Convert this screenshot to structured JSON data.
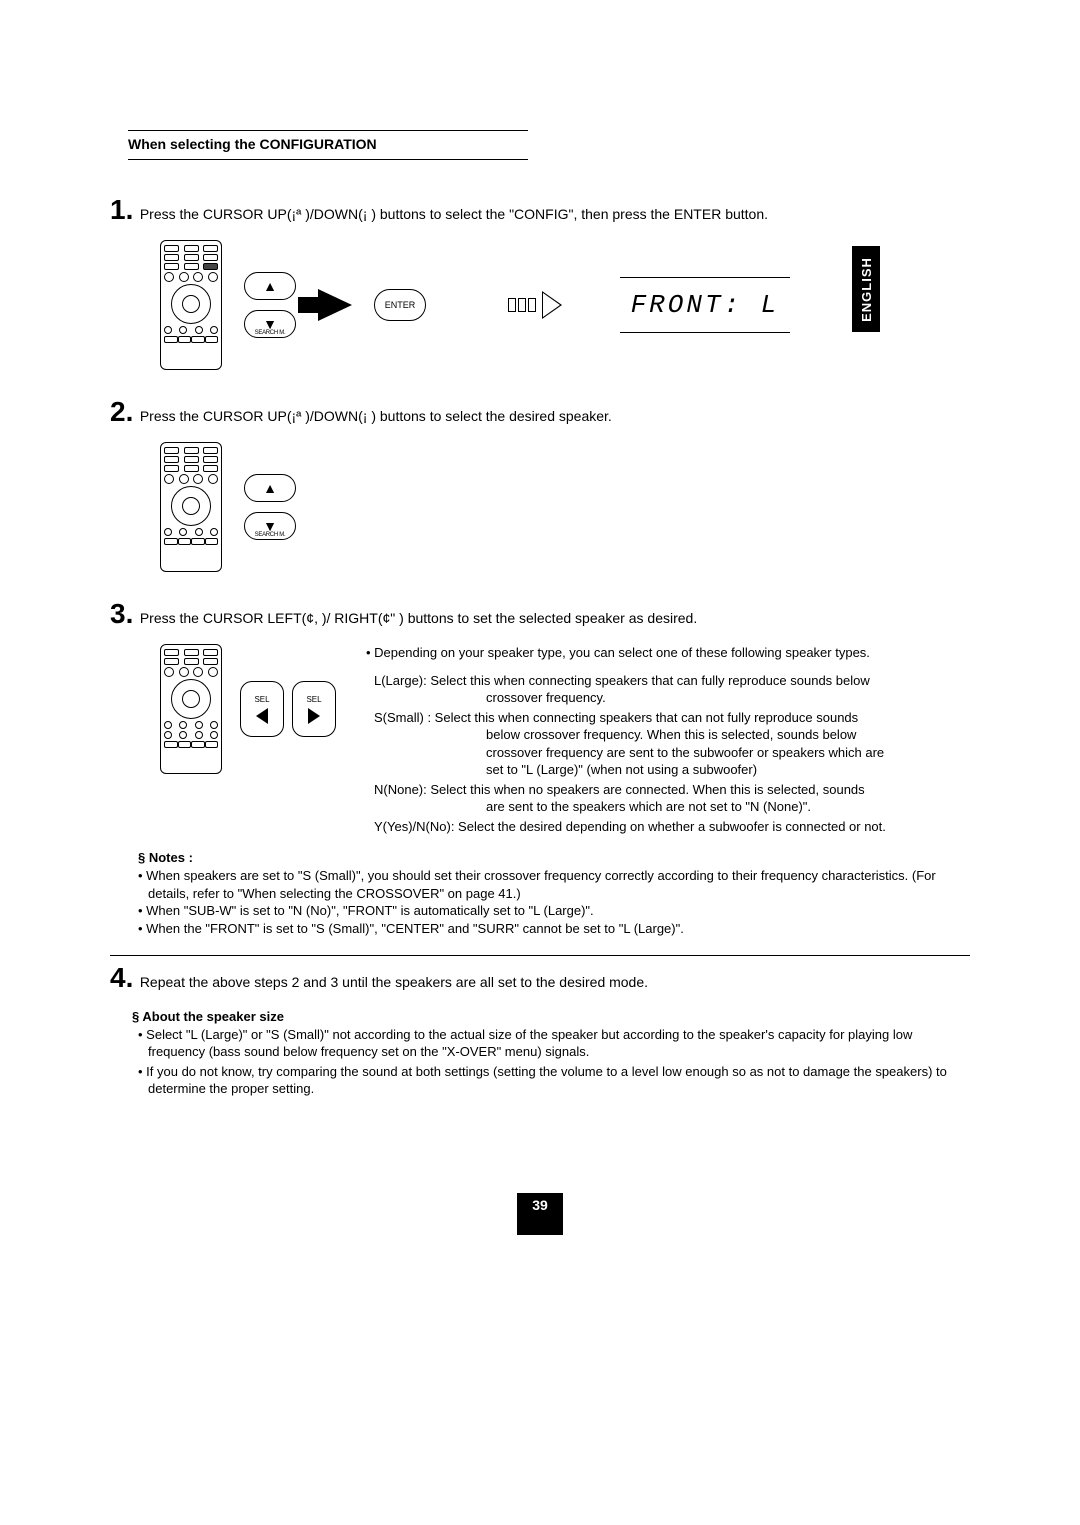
{
  "language_tab": "ENGLISH",
  "page_number": "39",
  "section_title": "When selecting the CONFIGURATION",
  "steps": {
    "s1": {
      "num": "1.",
      "text": "Press the CURSOR UP(¡ª )/DOWN(¡  ) buttons to select the \"CONFIG\", then press the ENTER button."
    },
    "s2": {
      "num": "2.",
      "text": "Press the CURSOR UP(¡ª )/DOWN(¡  ) buttons to select the desired speaker."
    },
    "s3": {
      "num": "3.",
      "text": "Press the CURSOR LEFT(¢, )/ RIGHT(¢\" ) buttons to set the selected speaker as desired."
    },
    "s4": {
      "num": "4.",
      "text": "Repeat the above steps 2 and 3 until the speakers are all set to the desired mode."
    }
  },
  "fig": {
    "enter_label": "ENTER",
    "search_label": "SEARCH M.",
    "sel_label": "SEL",
    "display_text": "FRONT:  L"
  },
  "info": {
    "top": "• Depending on your speaker type, you can select one of these following speaker types.",
    "L_label": "L(Large): ",
    "L_text": "Select this when connecting speakers that can fully reproduce sounds below crossover frequency.",
    "S_label": "S(Small) : ",
    "S_text": "Select this when connecting speakers that can not fully reproduce sounds below crossover frequency. When this is selected, sounds below crossover frequency are sent to the subwoofer or speakers which are set to \"L (Large)\" (when not using a subwoofer)",
    "N_label": "N(None): ",
    "N_text": "Select this when no speakers are connected. When this is selected, sounds are sent to the speakers which are not set to \"N (None)\".",
    "Y_label": "Y(Yes)/N(No): ",
    "Y_text": "Select the desired depending on whether a subwoofer is connected or not."
  },
  "notes": {
    "title": "§  Notes :",
    "n1": "• When speakers are set to \"S (Small)\", you should set their crossover frequency correctly according to their frequency characteristics. (For details, refer to \"When selecting the CROSSOVER\" on page 41.)",
    "n2": "• When \"SUB-W\" is set to \"N (No)\", \"FRONT\" is automatically set to \"L (Large)\".",
    "n3": "• When the \"FRONT\" is set to \"S (Small)\", \"CENTER\" and \"SURR\" cannot be set to \"L (Large)\"."
  },
  "about": {
    "title": "§  About the speaker size",
    "a1": "• Select \"L (Large)\" or \"S (Small)\" not according to the actual size of the speaker but according to the speaker's capacity for playing low frequency (bass sound below frequency set on the \"X-OVER\" menu) signals.",
    "a2": "• If you do not know, try comparing the sound at both settings (setting the volume to a level low enough so as not to damage the speakers) to determine the proper setting."
  }
}
